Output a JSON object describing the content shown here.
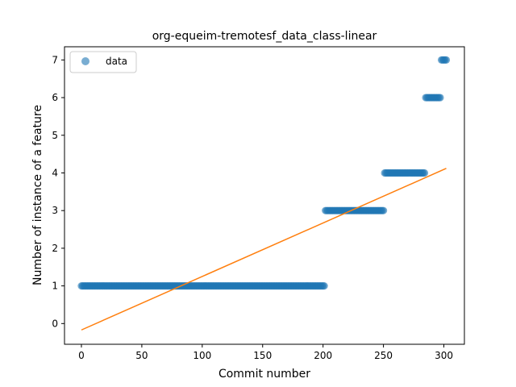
{
  "chart_data": {
    "type": "scatter",
    "title": "org-equeim-tremotesf_data_class-linear",
    "xlabel": "Commit number",
    "ylabel": "Number of instance of a feature",
    "xlim": [
      -14,
      317
    ],
    "ylim": [
      -0.55,
      7.35
    ],
    "xticks": [
      0,
      50,
      100,
      150,
      200,
      250,
      300
    ],
    "yticks": [
      0,
      1,
      2,
      3,
      4,
      5,
      6,
      7
    ],
    "legend": {
      "position": "top-left",
      "entries": [
        "data"
      ]
    },
    "grid": false,
    "colors": {
      "data": "#1f77b4",
      "fit": "#ff7f0e"
    },
    "series": [
      {
        "name": "data",
        "kind": "points",
        "segments": [
          {
            "x_start": 0,
            "x_end": 201,
            "y": 1
          },
          {
            "x_start": 202,
            "x_end": 250,
            "y": 3
          },
          {
            "x_start": 251,
            "x_end": 284,
            "y": 4
          },
          {
            "x_start": 285,
            "x_end": 297,
            "y": 6
          },
          {
            "x_start": 298,
            "x_end": 302,
            "y": 7
          }
        ]
      },
      {
        "kind": "line",
        "x": [
          0,
          302
        ],
        "y": [
          -0.17,
          4.12
        ]
      }
    ]
  }
}
